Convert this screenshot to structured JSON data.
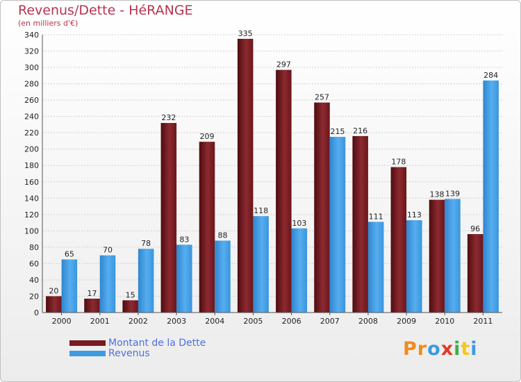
{
  "title": "Revenus/Dette - HéRANGE",
  "subtitle": "(en milliers d'€)",
  "colors": {
    "dette": "#7a1a1f",
    "revenus": "#3f9be0",
    "grid": "#d0d0d0",
    "axis_text": "#222222"
  },
  "legend": {
    "dette_label": "Montant de la Dette",
    "revenus_label": "Revenus"
  },
  "logo": {
    "text": "Proxiti",
    "letter_colors": [
      "#f08c1e",
      "#f08c1e",
      "#3b9be0",
      "#e23a2a",
      "#3fae49",
      "#f2c81e",
      "#3b9be0"
    ]
  },
  "chart_data": {
    "type": "bar",
    "title": "Revenus/Dette - HéRANGE",
    "subtitle": "(en milliers d'€)",
    "xlabel": "",
    "ylabel": "",
    "ylim": [
      0,
      340
    ],
    "ytick_step": 20,
    "grid": true,
    "legend_position": "bottom-left",
    "categories": [
      "2000",
      "2001",
      "2002",
      "2003",
      "2004",
      "2005",
      "2006",
      "2007",
      "2008",
      "2009",
      "2010",
      "2011"
    ],
    "series": [
      {
        "name": "Montant de la Dette",
        "values": [
          20,
          17,
          15,
          232,
          209,
          335,
          297,
          257,
          216,
          178,
          138,
          96
        ]
      },
      {
        "name": "Revenus",
        "values": [
          65,
          70,
          78,
          83,
          88,
          118,
          103,
          215,
          111,
          113,
          139,
          284
        ]
      }
    ]
  }
}
